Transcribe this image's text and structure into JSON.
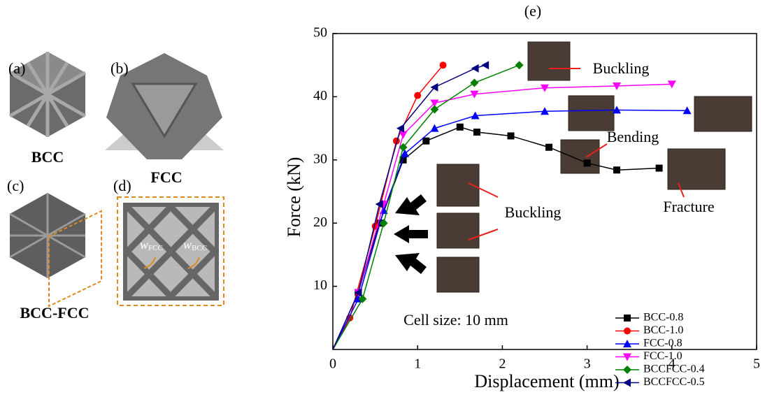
{
  "panels": {
    "labels": [
      "(a)",
      "(b)",
      "(c)",
      "(d)"
    ],
    "names": [
      "BCC",
      "FCC",
      "BCC-FCC"
    ],
    "widths": [
      {
        "symbol": "w",
        "subscript": "FCC"
      },
      {
        "symbol": "w",
        "subscript": "BCC"
      }
    ]
  },
  "chart_data": {
    "type": "line",
    "title": "(e)",
    "x_label": "Displacement (mm)",
    "y_label": "Force (kN)",
    "xlim": [
      0,
      5
    ],
    "ylim": [
      0,
      50
    ],
    "xticks": [
      0,
      1,
      2,
      3,
      4,
      5
    ],
    "yticks": [
      10,
      20,
      30,
      40,
      50
    ],
    "legend": "lower right",
    "annotations": [
      "Buckling",
      "Bending",
      "Buckling",
      "Fracture",
      "Cell size: 10 mm"
    ],
    "series": [
      {
        "name": "BCC-0.8",
        "color": "#000000",
        "marker": "square",
        "x": [
          0,
          0.3,
          0.55,
          0.83,
          1.1,
          1.5,
          1.7,
          2.1,
          2.55,
          3.0,
          3.35,
          3.85
        ],
        "values": [
          0,
          9,
          20,
          30,
          33,
          35.2,
          34.4,
          33.8,
          32,
          29.5,
          28.4,
          28.7
        ]
      },
      {
        "name": "BCC-1.0",
        "color": "#ff0000",
        "marker": "circle",
        "x": [
          0,
          0.2,
          0.5,
          0.75,
          1.0,
          1.3
        ],
        "values": [
          0,
          5,
          19.5,
          33,
          40.2,
          45
        ]
      },
      {
        "name": "FCC-0.8",
        "color": "#0000ff",
        "marker": "triangle-up",
        "x": [
          0,
          0.3,
          0.6,
          0.85,
          1.2,
          1.68,
          2.5,
          3.35,
          4.18
        ],
        "values": [
          0,
          8,
          22,
          31,
          35,
          37,
          37.7,
          37.9,
          37.8
        ]
      },
      {
        "name": "FCC-1.0",
        "color": "#ff00ff",
        "marker": "triangle-down",
        "x": [
          0,
          0.3,
          0.6,
          0.83,
          1.2,
          1.67,
          2.5,
          3.35,
          4.0
        ],
        "values": [
          0,
          9,
          23,
          34,
          39,
          40.4,
          41.4,
          41.7,
          42
        ]
      },
      {
        "name": "BCCFCC-0.4",
        "color": "#008000",
        "marker": "diamond",
        "x": [
          0,
          0.35,
          0.6,
          0.83,
          1.2,
          1.67,
          2.2
        ],
        "values": [
          0,
          8,
          20,
          32,
          38,
          42.2,
          45
        ]
      },
      {
        "name": "BCCFCC-0.5",
        "color": "#000080",
        "marker": "triangle-left",
        "x": [
          0,
          0.3,
          0.55,
          0.8,
          1.2,
          1.68,
          1.8
        ],
        "values": [
          0,
          9,
          23,
          35,
          41.5,
          44.5,
          45
        ]
      }
    ]
  }
}
